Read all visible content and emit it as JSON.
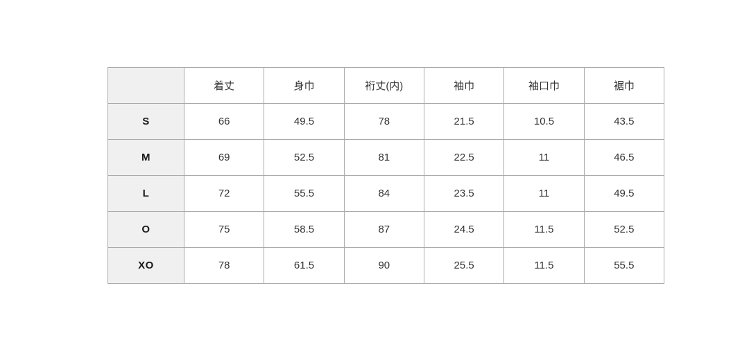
{
  "chart_data": {
    "type": "table",
    "title": "",
    "columns": [
      "",
      "着丈",
      "身巾",
      "裄丈(内)",
      "袖巾",
      "袖口巾",
      "裾巾"
    ],
    "rows": [
      {
        "size": "S",
        "values": [
          "66",
          "49.5",
          "78",
          "21.5",
          "10.5",
          "43.5"
        ]
      },
      {
        "size": "M",
        "values": [
          "69",
          "52.5",
          "81",
          "22.5",
          "11",
          "46.5"
        ]
      },
      {
        "size": "L",
        "values": [
          "72",
          "55.5",
          "84",
          "23.5",
          "11",
          "49.5"
        ]
      },
      {
        "size": "O",
        "values": [
          "75",
          "58.5",
          "87",
          "24.5",
          "11.5",
          "52.5"
        ]
      },
      {
        "size": "XO",
        "values": [
          "78",
          "61.5",
          "90",
          "25.5",
          "11.5",
          "55.5"
        ]
      }
    ],
    "layout": {
      "grid": true,
      "row_header_column": "sizes",
      "header_row_background": "#ffffff"
    },
    "colors": {
      "border": "#aaaaaa",
      "row_header_bg": "#f0f0f0",
      "text": "#333333",
      "page_bg": "#ffffff"
    }
  }
}
